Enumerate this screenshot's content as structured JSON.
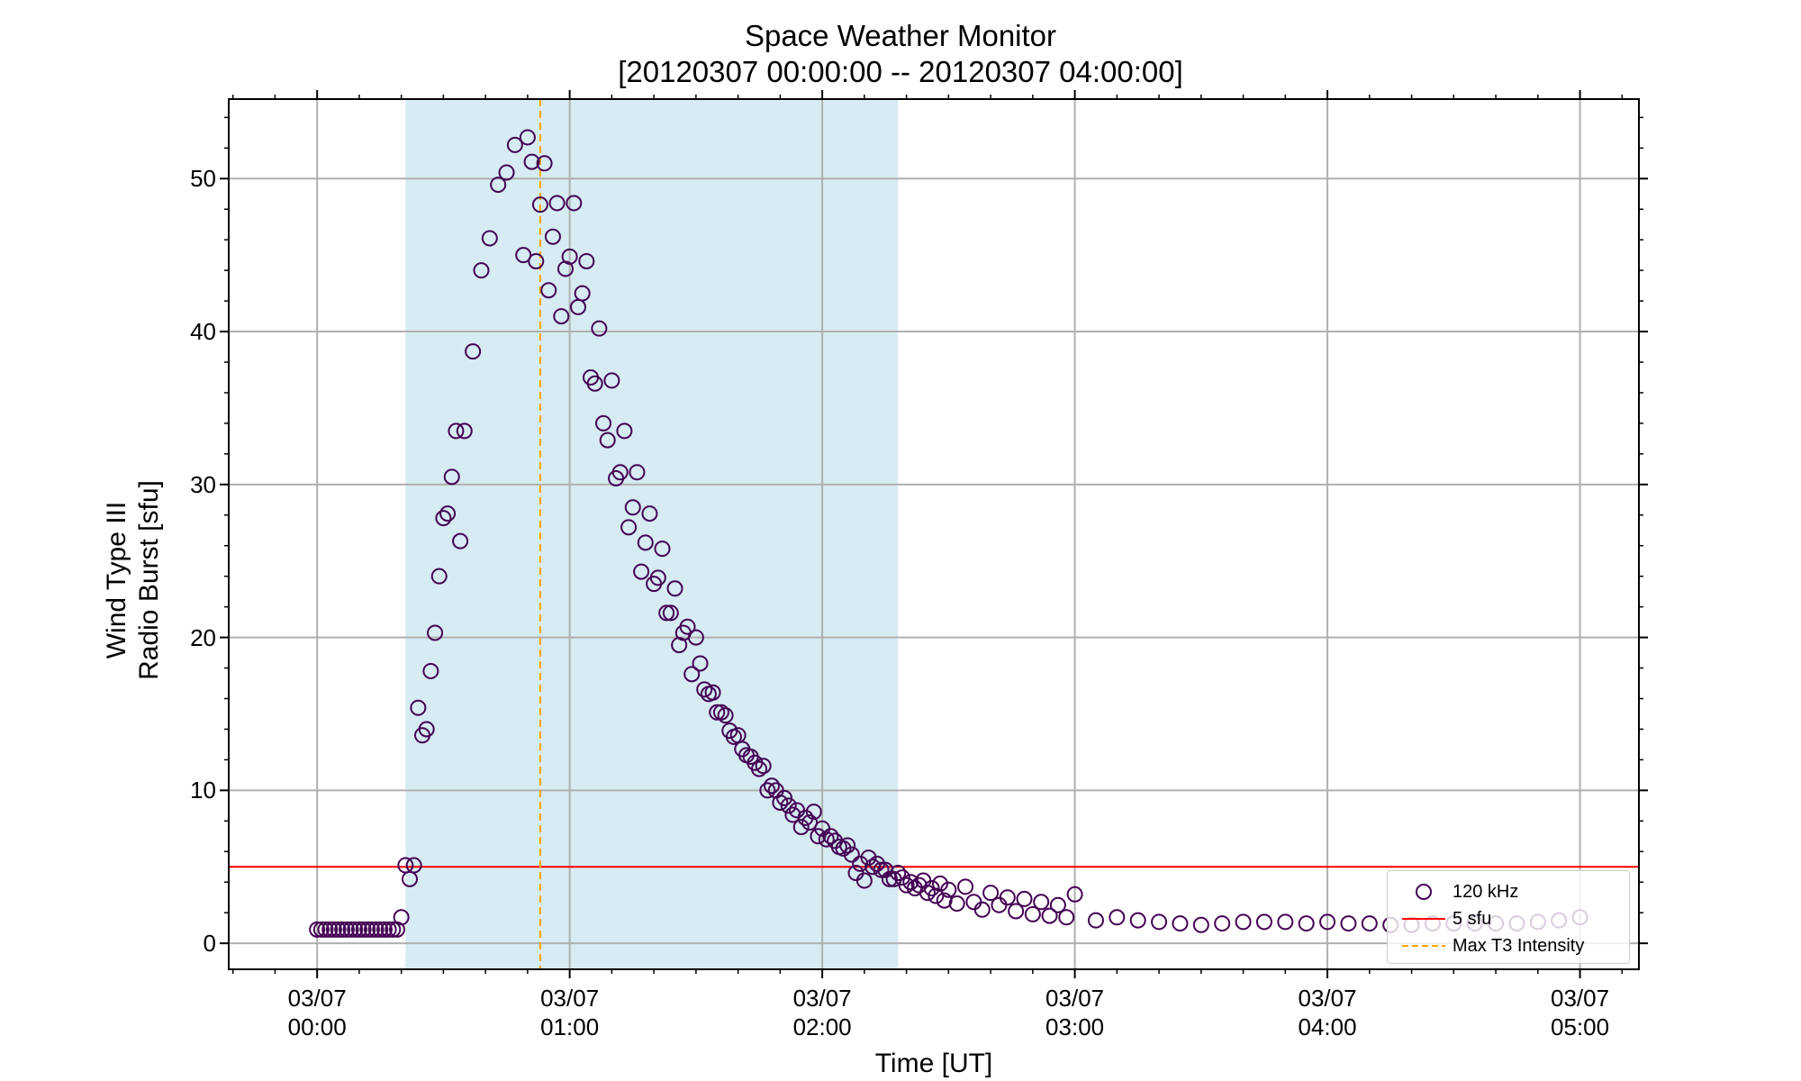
{
  "chart_data": {
    "type": "scatter",
    "title": "Space Weather Monitor",
    "subtitle": "[20120307 00:00:00 -- 20120307 04:00:00]",
    "xlabel": "Time [UT]",
    "ylabel": [
      "Wind Type III",
      "Radio Burst [sfu]"
    ],
    "xlim": [
      "03/06 23:39",
      "03/07 05:14"
    ],
    "ylim": [
      -1.7,
      55.2
    ],
    "grid": true,
    "legend_position": "bottom-right",
    "x_ticks": [
      {
        "value": "03/07 00:00",
        "label": [
          "03/07",
          "00:00"
        ]
      },
      {
        "value": "03/07 01:00",
        "label": [
          "03/07",
          "01:00"
        ]
      },
      {
        "value": "03/07 02:00",
        "label": [
          "03/07",
          "02:00"
        ]
      },
      {
        "value": "03/07 03:00",
        "label": [
          "03/07",
          "03:00"
        ]
      },
      {
        "value": "03/07 04:00",
        "label": [
          "03/07",
          "04:00"
        ]
      },
      {
        "value": "03/07 05:00",
        "label": [
          "03/07",
          "05:00"
        ]
      }
    ],
    "y_ticks": [
      0,
      10,
      20,
      30,
      40,
      50
    ],
    "shaded_interval": {
      "start": "03/07 00:21",
      "end": "03/07 02:18",
      "color": "#add8e6"
    },
    "threshold": {
      "name": "5 sfu",
      "value": 5,
      "color": "#ff0000"
    },
    "peak_marker": {
      "name": "Max T3 Intensity",
      "x": "03/07 00:53",
      "color": "#ffa500"
    },
    "series": [
      {
        "name": "120 kHz",
        "color": "#440154",
        "x": [
          "03/07 00:00",
          "03/07 00:01",
          "03/07 00:02",
          "03/07 00:03",
          "03/07 00:04",
          "03/07 00:05",
          "03/07 00:06",
          "03/07 00:07",
          "03/07 00:08",
          "03/07 00:09",
          "03/07 00:10",
          "03/07 00:11",
          "03/07 00:12",
          "03/07 00:13",
          "03/07 00:14",
          "03/07 00:15",
          "03/07 00:16",
          "03/07 00:17",
          "03/07 00:18",
          "03/07 00:19",
          "03/07 00:20",
          "03/07 00:21",
          "03/07 00:22",
          "03/07 00:23",
          "03/07 00:24",
          "03/07 00:25",
          "03/07 00:26",
          "03/07 00:27",
          "03/07 00:28",
          "03/07 00:29",
          "03/07 00:30",
          "03/07 00:31",
          "03/07 00:32",
          "03/07 00:33",
          "03/07 00:34",
          "03/07 00:35",
          "03/07 00:37",
          "03/07 00:39",
          "03/07 00:41",
          "03/07 00:43",
          "03/07 00:45",
          "03/07 00:47",
          "03/07 00:49",
          "03/07 00:50",
          "03/07 00:51",
          "03/07 00:52",
          "03/07 00:53",
          "03/07 00:54",
          "03/07 00:55",
          "03/07 00:56",
          "03/07 00:57",
          "03/07 00:58",
          "03/07 00:59",
          "03/07 01:00",
          "03/07 01:01",
          "03/07 01:02",
          "03/07 01:03",
          "03/07 01:04",
          "03/07 01:05",
          "03/07 01:06",
          "03/07 01:07",
          "03/07 01:08",
          "03/07 01:09",
          "03/07 01:10",
          "03/07 01:11",
          "03/07 01:12",
          "03/07 01:13",
          "03/07 01:14",
          "03/07 01:15",
          "03/07 01:16",
          "03/07 01:17",
          "03/07 01:18",
          "03/07 01:19",
          "03/07 01:20",
          "03/07 01:21",
          "03/07 01:22",
          "03/07 01:23",
          "03/07 01:24",
          "03/07 01:25",
          "03/07 01:26",
          "03/07 01:27",
          "03/07 01:28",
          "03/07 01:29",
          "03/07 01:30",
          "03/07 01:31",
          "03/07 01:32",
          "03/07 01:33",
          "03/07 01:34",
          "03/07 01:35",
          "03/07 01:36",
          "03/07 01:37",
          "03/07 01:38",
          "03/07 01:39",
          "03/07 01:40",
          "03/07 01:41",
          "03/07 01:42",
          "03/07 01:43",
          "03/07 01:44",
          "03/07 01:45",
          "03/07 01:46",
          "03/07 01:47",
          "03/07 01:48",
          "03/07 01:49",
          "03/07 01:50",
          "03/07 01:51",
          "03/07 01:52",
          "03/07 01:53",
          "03/07 01:54",
          "03/07 01:55",
          "03/07 01:56",
          "03/07 01:57",
          "03/07 01:58",
          "03/07 01:59",
          "03/07 02:00",
          "03/07 02:01",
          "03/07 02:02",
          "03/07 02:03",
          "03/07 02:04",
          "03/07 02:05",
          "03/07 02:06",
          "03/07 02:07",
          "03/07 02:08",
          "03/07 02:09",
          "03/07 02:10",
          "03/07 02:11",
          "03/07 02:12",
          "03/07 02:13",
          "03/07 02:14",
          "03/07 02:15",
          "03/07 02:16",
          "03/07 02:17",
          "03/07 02:18",
          "03/07 02:19",
          "03/07 02:20",
          "03/07 02:21",
          "03/07 02:22",
          "03/07 02:23",
          "03/07 02:24",
          "03/07 02:25",
          "03/07 02:26",
          "03/07 02:27",
          "03/07 02:28",
          "03/07 02:29",
          "03/07 02:30",
          "03/07 02:32",
          "03/07 02:34",
          "03/07 02:36",
          "03/07 02:38",
          "03/07 02:40",
          "03/07 02:42",
          "03/07 02:44",
          "03/07 02:46",
          "03/07 02:48",
          "03/07 02:50",
          "03/07 02:52",
          "03/07 02:54",
          "03/07 02:56",
          "03/07 02:58",
          "03/07 03:00",
          "03/07 03:05",
          "03/07 03:10",
          "03/07 03:15",
          "03/07 03:20",
          "03/07 03:25",
          "03/07 03:30",
          "03/07 03:35",
          "03/07 03:40",
          "03/07 03:45",
          "03/07 03:50",
          "03/07 03:55",
          "03/07 04:00",
          "03/07 04:05",
          "03/07 04:10",
          "03/07 04:15",
          "03/07 04:20",
          "03/07 04:25",
          "03/07 04:30",
          "03/07 04:35",
          "03/07 04:40",
          "03/07 04:45",
          "03/07 04:50",
          "03/07 04:55",
          "03/07 05:00"
        ],
        "y": [
          0.9,
          0.9,
          0.9,
          0.9,
          0.9,
          0.9,
          0.9,
          0.9,
          0.9,
          0.9,
          0.9,
          0.9,
          0.9,
          0.9,
          0.9,
          0.9,
          0.9,
          0.9,
          0.9,
          0.9,
          1.7,
          5.1,
          4.2,
          5.1,
          15.4,
          13.6,
          14.0,
          17.8,
          20.3,
          24.0,
          27.8,
          28.1,
          30.5,
          33.5,
          26.3,
          33.5,
          38.7,
          44.0,
          46.1,
          49.6,
          50.4,
          52.2,
          45.0,
          52.7,
          51.1,
          44.6,
          48.3,
          51.0,
          42.7,
          46.2,
          48.4,
          41.0,
          44.1,
          44.9,
          48.4,
          41.6,
          42.5,
          44.6,
          37.0,
          36.6,
          40.2,
          34.0,
          32.9,
          36.8,
          30.4,
          30.8,
          33.5,
          27.2,
          28.5,
          30.8,
          24.3,
          26.2,
          28.1,
          23.5,
          23.9,
          25.8,
          21.6,
          21.6,
          23.2,
          19.5,
          20.3,
          20.7,
          17.6,
          20.0,
          18.3,
          16.6,
          16.3,
          16.4,
          15.1,
          15.1,
          14.9,
          13.9,
          13.5,
          13.6,
          12.7,
          12.3,
          12.2,
          11.8,
          11.4,
          11.6,
          10.0,
          10.3,
          10.0,
          9.2,
          9.5,
          9.0,
          8.4,
          8.7,
          7.6,
          8.2,
          7.9,
          8.6,
          7.0,
          7.5,
          6.8,
          7.0,
          6.7,
          6.3,
          6.2,
          6.4,
          5.8,
          4.6,
          5.2,
          4.1,
          5.6,
          5.0,
          5.2,
          4.8,
          4.8,
          4.2,
          4.2,
          4.6,
          4.3,
          3.8,
          4.0,
          3.6,
          3.8,
          4.1,
          3.3,
          3.6,
          3.1,
          3.9,
          2.8,
          3.5,
          2.6,
          3.7,
          2.7,
          2.2,
          3.3,
          2.5,
          3.0,
          2.1,
          2.9,
          1.9,
          2.7,
          1.8,
          2.5,
          1.7,
          3.2,
          1.5,
          1.7,
          1.5,
          1.4,
          1.3,
          1.2,
          1.3,
          1.4,
          1.4,
          1.4,
          1.3,
          1.4,
          1.3,
          1.3,
          1.2,
          1.2,
          1.3,
          1.3,
          1.3,
          1.3,
          1.3,
          1.4,
          1.5,
          1.7
        ]
      }
    ]
  }
}
